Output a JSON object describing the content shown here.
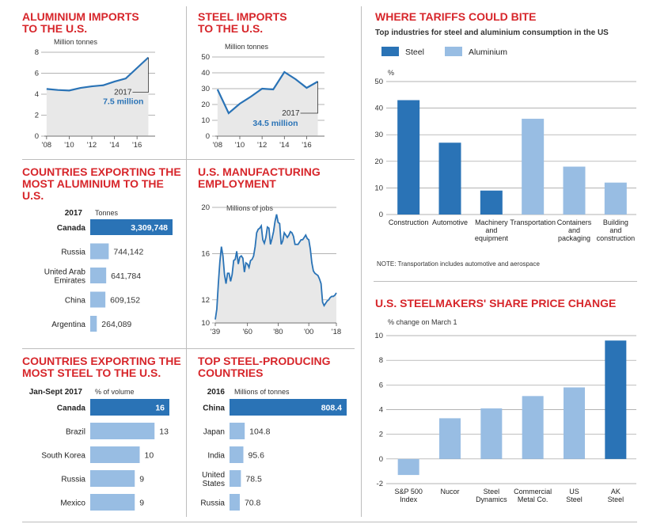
{
  "colors": {
    "steel": "#2a73b6",
    "aluminium": "#98bde3",
    "title": "#d7262b",
    "area": "#e8e8e8",
    "grid": "#9a9a9a"
  },
  "alu_imports": {
    "title": "ALUMINIUM IMPORTS\nTO THE U.S.",
    "unit": "Million tonnes",
    "annot_year": "2017",
    "annot_value": "7.5 million"
  },
  "steel_imports": {
    "title": "STEEL IMPORTS\nTO THE U.S.",
    "unit": "Million tonnes",
    "annot_year": "2017",
    "annot_value": "34.5 million"
  },
  "tariffs": {
    "title": "WHERE TARIFFS COULD BITE",
    "subtitle": "Top industries for steel and aluminium consumption in the US",
    "legend_steel": "Steel",
    "legend_alu": "Aluminium",
    "unit": "%",
    "note": "NOTE: Transportation includes automotive and aerospace"
  },
  "alu_exporters": {
    "title": "COUNTRIES EXPORTING THE\nMOST ALUMINIUM TO THE U.S.",
    "year": "2017",
    "unit": "Tonnes"
  },
  "mfg": {
    "title": "U.S. MANUFACTURING\nEMPLOYMENT",
    "unit": "Millions of jobs"
  },
  "steelmakers": {
    "title": "U.S. STEELMAKERS' SHARE PRICE CHANGE",
    "unit": "% change on March 1"
  },
  "steel_exporters": {
    "title": "COUNTRIES EXPORTING THE\nMOST STEEL TO THE U.S.",
    "period": "Jan-Sept 2017",
    "unit": "% of volume"
  },
  "producers": {
    "title": "TOP STEEL-PRODUCING\nCOUNTRIES",
    "year": "2016",
    "unit": "Millions of tonnes"
  },
  "chart_data": [
    {
      "id": "alu_imports",
      "type": "area",
      "x": [
        2008,
        2009,
        2010,
        2011,
        2012,
        2013,
        2014,
        2015,
        2016,
        2017
      ],
      "values": [
        4.5,
        4.4,
        4.35,
        4.6,
        4.75,
        4.85,
        5.2,
        5.5,
        6.5,
        7.5
      ],
      "ylim": [
        0,
        8
      ],
      "yticks": [
        0,
        2,
        4,
        6,
        8
      ],
      "xticks": [
        2008,
        2010,
        2012,
        2014,
        2016
      ],
      "xtick_labels": [
        "'08",
        "'10",
        "'12",
        "'14",
        "'16"
      ]
    },
    {
      "id": "steel_imports",
      "type": "area",
      "x": [
        2008,
        2009,
        2010,
        2011,
        2012,
        2013,
        2014,
        2015,
        2016,
        2017
      ],
      "values": [
        29.5,
        14.5,
        20.5,
        25,
        30,
        29.5,
        40.5,
        36,
        30.5,
        34.5
      ],
      "ylim": [
        0,
        50
      ],
      "yticks": [
        0,
        10,
        20,
        30,
        40,
        50
      ],
      "xticks": [
        2008,
        2010,
        2012,
        2014,
        2016
      ],
      "xtick_labels": [
        "'08",
        "'10",
        "'12",
        "'14",
        "'16"
      ]
    },
    {
      "id": "tariffs",
      "type": "bar",
      "categories": [
        "Construction",
        "Automotive",
        "Machinery\nand\nequipment",
        "Transportation",
        "Containers\nand\npackaging",
        "Building\nand\nconstruction"
      ],
      "series": [
        {
          "name": "Steel",
          "values": [
            43,
            27,
            9,
            null,
            null,
            null
          ]
        },
        {
          "name": "Aluminium",
          "values": [
            null,
            null,
            null,
            36,
            18,
            12
          ]
        }
      ],
      "ylim": [
        0,
        50
      ],
      "yticks": [
        0,
        10,
        20,
        30,
        40,
        50
      ],
      "legend": "top-left"
    },
    {
      "id": "alu_exporters",
      "type": "bar",
      "categories": [
        "Canada",
        "Russia",
        "United Arab\nEmirates",
        "China",
        "Argentina"
      ],
      "values": [
        3309748,
        744142,
        641784,
        609152,
        264089
      ],
      "value_labels": [
        "3,309,748",
        "744,142",
        "641,784",
        "609,152",
        "264,089"
      ]
    },
    {
      "id": "mfg",
      "type": "line",
      "x": [
        1939,
        1940,
        1941,
        1942,
        1943,
        1944,
        1945,
        1946,
        1947,
        1948,
        1949,
        1950,
        1951,
        1952,
        1953,
        1954,
        1955,
        1956,
        1957,
        1958,
        1959,
        1960,
        1961,
        1962,
        1963,
        1964,
        1965,
        1966,
        1967,
        1968,
        1969,
        1970,
        1971,
        1972,
        1973,
        1974,
        1975,
        1976,
        1977,
        1978,
        1979,
        1980,
        1981,
        1982,
        1983,
        1984,
        1985,
        1986,
        1987,
        1988,
        1989,
        1990,
        1991,
        1992,
        1993,
        1994,
        1995,
        1996,
        1997,
        1998,
        1999,
        2000,
        2001,
        2002,
        2003,
        2004,
        2005,
        2006,
        2007,
        2008,
        2009,
        2010,
        2011,
        2012,
        2013,
        2014,
        2015,
        2016,
        2017,
        2018
      ],
      "values": [
        10.3,
        11.2,
        13.4,
        15.3,
        16.6,
        15.8,
        14.2,
        13.4,
        14.3,
        14.3,
        13.6,
        14.2,
        15.4,
        15.5,
        16.2,
        15.1,
        15.7,
        15.8,
        15.6,
        14.4,
        15.2,
        15.1,
        14.8,
        15.4,
        15.5,
        15.8,
        16.6,
        17.8,
        18.1,
        18.2,
        18.4,
        17.2,
        16.9,
        17.4,
        18.3,
        18.2,
        16.8,
        17.3,
        17.9,
        18.8,
        19.4,
        18.7,
        18.6,
        16.8,
        17.1,
        17.8,
        17.6,
        17.4,
        17.6,
        17.9,
        17.8,
        17.5,
        16.8,
        16.8,
        16.8,
        17.0,
        17.2,
        17.2,
        17.4,
        17.6,
        17.3,
        17.2,
        16.4,
        15.2,
        14.5,
        14.3,
        14.2,
        14.1,
        13.8,
        13.4,
        11.8,
        11.5,
        11.7,
        11.9,
        12.0,
        12.2,
        12.3,
        12.3,
        12.4,
        12.6
      ],
      "ylim": [
        10,
        20
      ],
      "yticks": [
        10,
        12,
        16,
        20
      ],
      "xticks": [
        1939,
        1960,
        1980,
        2000,
        2018
      ],
      "xtick_labels": [
        "'39",
        "'60",
        "'80",
        "'00",
        "'18"
      ]
    },
    {
      "id": "steelmakers",
      "type": "bar",
      "categories": [
        "S&P 500\nIndex",
        "Nucor",
        "Steel\nDynamics",
        "Commercial\nMetal Co.",
        "US\nSteel",
        "AK\nSteel"
      ],
      "values": [
        -1.3,
        3.3,
        4.1,
        5.1,
        5.8,
        9.6
      ],
      "ylim": [
        -2,
        10
      ],
      "yticks": [
        -2,
        0,
        2,
        4,
        6,
        8,
        10
      ]
    },
    {
      "id": "steel_exporters",
      "type": "bar",
      "categories": [
        "Canada",
        "Brazil",
        "South Korea",
        "Russia",
        "Mexico"
      ],
      "values": [
        16,
        13,
        10,
        9,
        9
      ]
    },
    {
      "id": "producers",
      "type": "bar",
      "categories": [
        "China",
        "Japan",
        "India",
        "United\nStates",
        "Russia"
      ],
      "values": [
        808.4,
        104.8,
        95.6,
        78.5,
        70.8
      ]
    }
  ]
}
